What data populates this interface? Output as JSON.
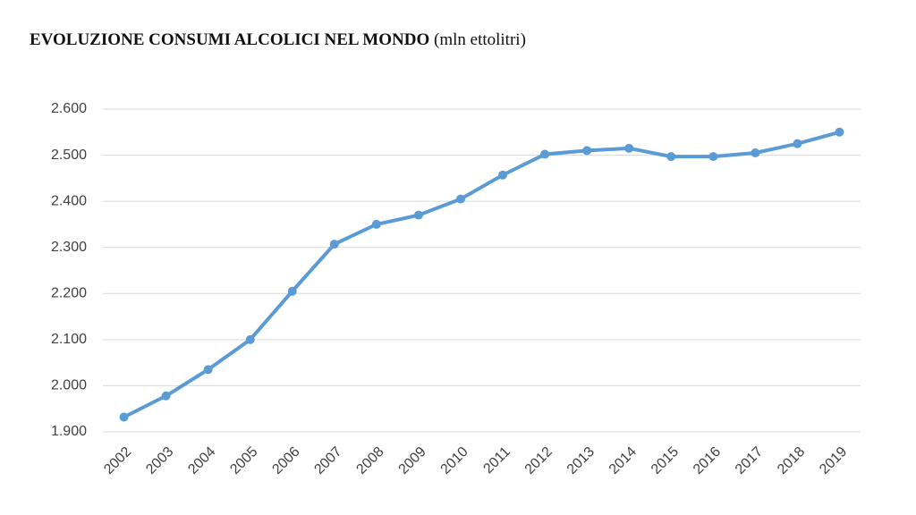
{
  "chart_data": {
    "type": "line",
    "title": "EVOLUZIONE CONSUMI ALCOLICI NEL MONDO",
    "subtitle": "(mln ettolitri)",
    "categories": [
      "2002",
      "2003",
      "2004",
      "2005",
      "2006",
      "2007",
      "2008",
      "2009",
      "2010",
      "2011",
      "2012",
      "2013",
      "2014",
      "2015",
      "2016",
      "2017",
      "2018",
      "2019"
    ],
    "values": [
      1932,
      1978,
      2035,
      2100,
      2205,
      2307,
      2350,
      2370,
      2405,
      2457,
      2502,
      2510,
      2515,
      2497,
      2497,
      2505,
      2525,
      2550
    ],
    "color": "#5b9bd5",
    "ylim": [
      1900,
      2600
    ],
    "yticks": [
      {
        "value": 1900,
        "label": "1.900"
      },
      {
        "value": 2000,
        "label": "2.000"
      },
      {
        "value": 2100,
        "label": "2.100"
      },
      {
        "value": 2200,
        "label": "2.200"
      },
      {
        "value": 2300,
        "label": "2.300"
      },
      {
        "value": 2400,
        "label": "2.400"
      },
      {
        "value": 2500,
        "label": "2.500"
      },
      {
        "value": 2600,
        "label": "2.600"
      }
    ],
    "grid": true
  }
}
